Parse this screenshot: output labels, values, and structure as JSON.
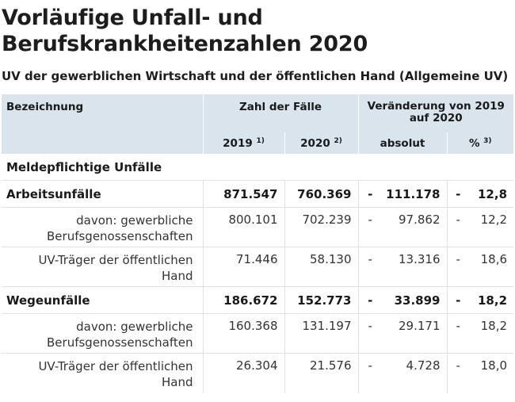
{
  "title_line1": "Vorläufige Unfall- und",
  "title_line2": "Berufskrankheitenzahlen 2020",
  "subtitle": "UV der gewerblichen Wirtschaft und der öffentlichen Hand (Allgemeine UV)",
  "header": {
    "col_label": "Bezeichnung",
    "col_cases": "Zahl der Fälle",
    "col_change_line1": "Veränderung von 2019",
    "col_change_line2": "auf 2020",
    "year1": "2019",
    "year1_sup": "1)",
    "year2": "2020",
    "year2_sup": "2)",
    "absolute": "absolut",
    "percent": "%",
    "percent_sup": "3)"
  },
  "section_title": "Meldepflichtige Unfälle",
  "rows": [
    {
      "label": "Arbeitsunfälle",
      "v2019": "871.547",
      "v2020": "760.369",
      "sign_abs": "-",
      "abs": "111.178",
      "sign_pct": "-",
      "pct": "12,8"
    },
    {
      "label_line1": "davon: gewerbliche",
      "label_line2": "Berufsgenossenschaften",
      "v2019": "800.101",
      "v2020": "702.239",
      "sign_abs": "-",
      "abs": "97.862",
      "sign_pct": "-",
      "pct": "12,2"
    },
    {
      "label_line1": "UV-Träger der öffentlichen",
      "label_line2": "Hand",
      "v2019": "71.446",
      "v2020": "58.130",
      "sign_abs": "-",
      "abs": "13.316",
      "sign_pct": "-",
      "pct": "18,6"
    },
    {
      "label": "Wegeunfälle",
      "v2019": "186.672",
      "v2020": "152.773",
      "sign_abs": "-",
      "abs": "33.899",
      "sign_pct": "-",
      "pct": "18,2"
    },
    {
      "label_line1": "davon: gewerbliche",
      "label_line2": "Berufsgenossenschaften",
      "v2019": "160.368",
      "v2020": "131.197",
      "sign_abs": "-",
      "abs": "29.171",
      "sign_pct": "-",
      "pct": "18,2"
    },
    {
      "label_line1": "UV-Träger der öffentlichen",
      "label_line2": "Hand",
      "v2019": "26.304",
      "v2020": "21.576",
      "sign_abs": "-",
      "abs": "4.728",
      "sign_pct": "-",
      "pct": "18,0"
    }
  ]
}
